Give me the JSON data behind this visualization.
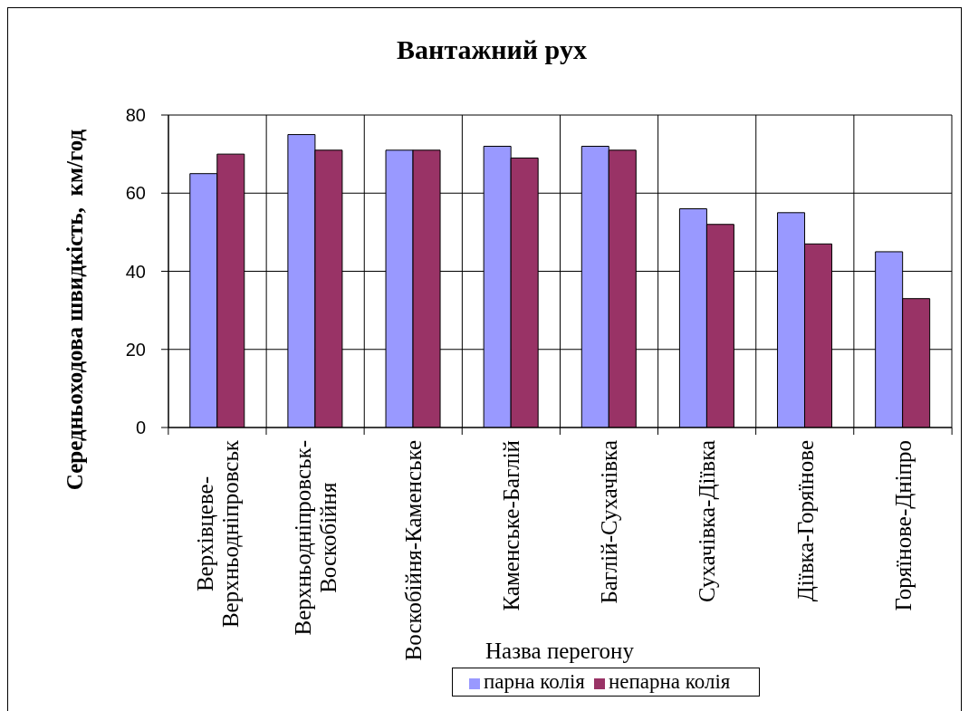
{
  "chart_data": {
    "type": "bar",
    "title": "Вантажний рух",
    "xlabel": "Назва перегону",
    "ylabel": "Середньоходова швидкість,  км/год",
    "categories": [
      "Верхівцеве-Верхньодніпровськ",
      "Верхньодніпровськ-Воскобійня",
      "Воскобійня-Каменське",
      "Каменське-Баглій",
      "Баглій-Сухачівка",
      "Сухачівка-Діївка",
      "Діївка-Горяїнове",
      "Горяїнове-Дніпро"
    ],
    "series": [
      {
        "name": "парна колія",
        "color": "#9999ff",
        "values": [
          65,
          75,
          71,
          72,
          72,
          56,
          55,
          45
        ]
      },
      {
        "name": "непарна колія",
        "color": "#993366",
        "values": [
          70,
          71,
          71,
          69,
          71,
          52,
          47,
          33
        ]
      }
    ],
    "ylim": [
      0,
      80
    ],
    "yticks": [
      0,
      20,
      40,
      60,
      80
    ],
    "grid": true,
    "legend": "bottom"
  }
}
